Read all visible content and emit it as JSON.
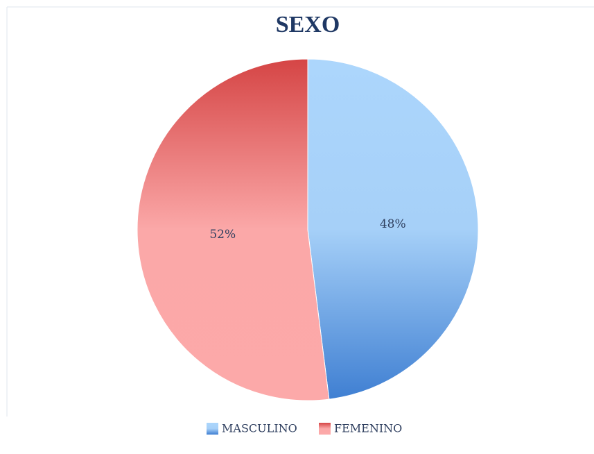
{
  "chart_data": {
    "type": "pie",
    "title": "SEXO",
    "categories": [
      "MASCULINO",
      "FEMENINO"
    ],
    "values": [
      48,
      52
    ],
    "value_labels": [
      "48%",
      "52%"
    ],
    "colors": [
      "#3f7fd2",
      "#d54545"
    ]
  }
}
